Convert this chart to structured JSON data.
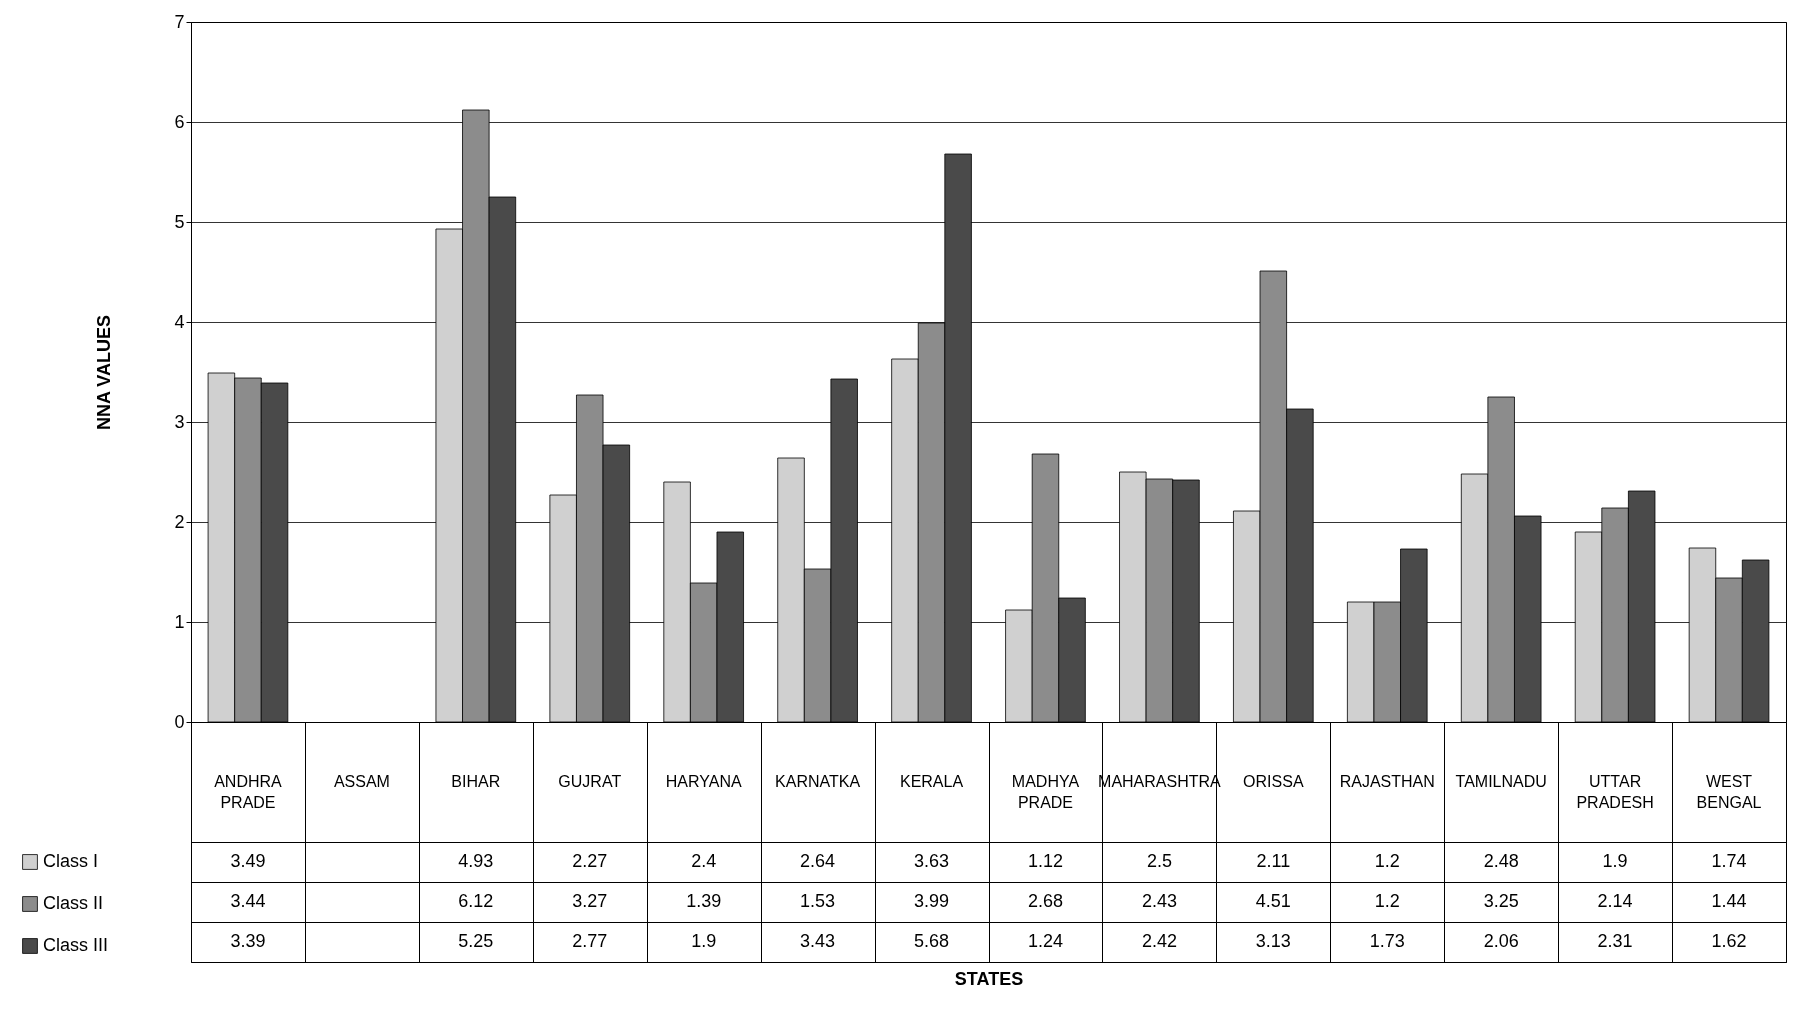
{
  "chart_data": {
    "type": "bar",
    "annotations": [
      "STATES"
    ],
    "ylabel": "NNA VALUES",
    "categories": [
      "ANDHRA PRADE",
      "ASSAM",
      "BIHAR",
      "GUJRAT",
      "HARYANA",
      "KARNATKA",
      "KERALA",
      "MADHYA PRADE",
      "MAHARASHTRA",
      "ORISSA",
      "RAJASTHAN",
      "TAMILNADU",
      "UTTAR PRADESH",
      "WEST BENGAL"
    ],
    "series": [
      {
        "name": "Class I",
        "color": "#d0d0d0",
        "values": [
          3.49,
          null,
          4.93,
          2.27,
          2.4,
          2.64,
          3.63,
          1.12,
          2.5,
          2.11,
          1.2,
          2.48,
          1.9,
          1.74
        ]
      },
      {
        "name": "Class II",
        "color": "#8c8c8c",
        "values": [
          3.44,
          null,
          6.12,
          3.27,
          1.39,
          1.53,
          3.99,
          2.68,
          2.43,
          4.51,
          1.2,
          3.25,
          2.14,
          1.44
        ]
      },
      {
        "name": "Class III",
        "color": "#4a4a4a",
        "values": [
          3.39,
          null,
          5.25,
          2.77,
          1.9,
          3.43,
          5.68,
          1.24,
          2.42,
          3.13,
          1.73,
          2.06,
          2.31,
          1.62
        ]
      }
    ],
    "ylim": [
      0,
      7
    ],
    "yticks": [
      0,
      1,
      2,
      3,
      4,
      5,
      6,
      7
    ],
    "grid": "y",
    "legend": "bottom left",
    "data_labels": true
  }
}
